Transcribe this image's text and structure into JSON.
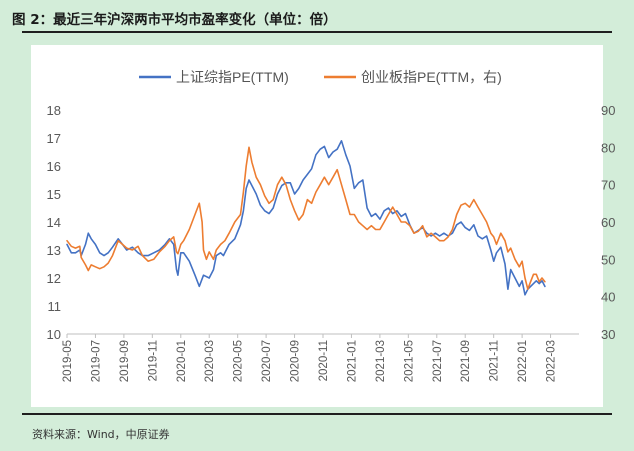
{
  "figure": {
    "title": "图 2：最近三年沪深两市平均市盈率变化（单位：倍）",
    "source": "资料来源：Wind，中原证券"
  },
  "chart_data": {
    "type": "line",
    "legend_position": "top",
    "grid": false,
    "x_ticks": [
      "2019-05",
      "2019-07",
      "2019-09",
      "2019-11",
      "2020-01",
      "2020-03",
      "2020-05",
      "2020-07",
      "2020-09",
      "2020-11",
      "2021-01",
      "2021-03",
      "2021-05",
      "2021-07",
      "2021-09",
      "2021-11",
      "2022-01",
      "2022-03"
    ],
    "x_range": [
      "2019-05",
      "2022-05"
    ],
    "y_left": {
      "min": 10,
      "max": 18,
      "ticks": [
        "10",
        "11",
        "12",
        "13",
        "14",
        "15",
        "16",
        "17",
        "18"
      ]
    },
    "y_right": {
      "min": 30,
      "max": 90,
      "ticks": [
        "30",
        "40",
        "50",
        "60",
        "70",
        "80",
        "90"
      ]
    },
    "series": [
      {
        "name": "上证综指PE(TTM)",
        "axis": "left",
        "color": "#4472c4",
        "points": [
          [
            0,
            13.2
          ],
          [
            0.3,
            12.9
          ],
          [
            0.6,
            12.9
          ],
          [
            0.9,
            13.0
          ],
          [
            1.0,
            12.8
          ],
          [
            1.3,
            13.2
          ],
          [
            1.5,
            13.6
          ],
          [
            1.7,
            13.4
          ],
          [
            2.0,
            13.2
          ],
          [
            2.3,
            12.9
          ],
          [
            2.6,
            12.8
          ],
          [
            2.9,
            12.9
          ],
          [
            3.2,
            13.1
          ],
          [
            3.6,
            13.4
          ],
          [
            3.9,
            13.2
          ],
          [
            4.2,
            13.0
          ],
          [
            4.6,
            13.1
          ],
          [
            5.0,
            12.9
          ],
          [
            5.3,
            12.8
          ],
          [
            5.7,
            12.8
          ],
          [
            6.1,
            12.9
          ],
          [
            6.5,
            13.0
          ],
          [
            6.9,
            13.2
          ],
          [
            7.2,
            13.4
          ],
          [
            7.5,
            13.2
          ],
          [
            7.7,
            12.3
          ],
          [
            7.8,
            12.1
          ],
          [
            8.0,
            12.9
          ],
          [
            8.2,
            12.9
          ],
          [
            8.6,
            12.6
          ],
          [
            9.0,
            12.1
          ],
          [
            9.3,
            11.7
          ],
          [
            9.6,
            12.1
          ],
          [
            10.0,
            12.0
          ],
          [
            10.3,
            12.3
          ],
          [
            10.5,
            12.8
          ],
          [
            10.8,
            12.9
          ],
          [
            11.0,
            12.8
          ],
          [
            11.4,
            13.2
          ],
          [
            11.8,
            13.4
          ],
          [
            12.2,
            13.9
          ],
          [
            12.4,
            14.4
          ],
          [
            12.6,
            15.2
          ],
          [
            12.8,
            15.5
          ],
          [
            13.0,
            15.3
          ],
          [
            13.3,
            15.0
          ],
          [
            13.6,
            14.6
          ],
          [
            13.9,
            14.4
          ],
          [
            14.2,
            14.3
          ],
          [
            14.5,
            14.5
          ],
          [
            14.8,
            15.0
          ],
          [
            15.1,
            15.3
          ],
          [
            15.4,
            15.4
          ],
          [
            15.7,
            15.4
          ],
          [
            16.0,
            15.0
          ],
          [
            16.3,
            15.2
          ],
          [
            16.6,
            15.5
          ],
          [
            16.9,
            15.7
          ],
          [
            17.2,
            15.9
          ],
          [
            17.5,
            16.4
          ],
          [
            17.8,
            16.6
          ],
          [
            18.1,
            16.7
          ],
          [
            18.4,
            16.3
          ],
          [
            18.7,
            16.5
          ],
          [
            19.0,
            16.6
          ],
          [
            19.3,
            16.9
          ],
          [
            19.6,
            16.4
          ],
          [
            19.9,
            16.0
          ],
          [
            20.2,
            15.2
          ],
          [
            20.5,
            15.4
          ],
          [
            20.8,
            15.5
          ],
          [
            21.1,
            14.5
          ],
          [
            21.4,
            14.2
          ],
          [
            21.7,
            14.3
          ],
          [
            22.0,
            14.1
          ],
          [
            22.3,
            14.4
          ],
          [
            22.6,
            14.5
          ],
          [
            22.9,
            14.3
          ],
          [
            23.2,
            14.4
          ],
          [
            23.5,
            14.2
          ],
          [
            23.8,
            14.3
          ],
          [
            24.1,
            13.9
          ],
          [
            24.4,
            13.6
          ],
          [
            24.7,
            13.7
          ],
          [
            25.0,
            13.8
          ],
          [
            25.3,
            13.6
          ],
          [
            25.6,
            13.5
          ],
          [
            25.9,
            13.6
          ],
          [
            26.2,
            13.5
          ],
          [
            26.5,
            13.6
          ],
          [
            26.8,
            13.5
          ],
          [
            27.1,
            13.6
          ],
          [
            27.4,
            13.9
          ],
          [
            27.7,
            14.0
          ],
          [
            28.0,
            13.8
          ],
          [
            28.3,
            13.7
          ],
          [
            28.6,
            13.9
          ],
          [
            28.9,
            13.5
          ],
          [
            29.2,
            13.4
          ],
          [
            29.5,
            13.5
          ],
          [
            29.8,
            13.0
          ],
          [
            30.0,
            12.6
          ],
          [
            30.2,
            12.9
          ],
          [
            30.5,
            13.1
          ],
          [
            30.8,
            12.5
          ],
          [
            31.0,
            11.6
          ],
          [
            31.2,
            12.3
          ],
          [
            31.5,
            12.0
          ],
          [
            31.8,
            11.7
          ],
          [
            32.0,
            11.9
          ],
          [
            32.2,
            11.4
          ],
          [
            32.4,
            11.6
          ],
          [
            32.6,
            11.7
          ],
          [
            32.8,
            11.8
          ],
          [
            33.0,
            11.9
          ],
          [
            33.2,
            11.8
          ],
          [
            33.4,
            11.9
          ],
          [
            33.6,
            11.7
          ]
        ]
      },
      {
        "name": "创业板指PE(TTM，右)",
        "axis": "right",
        "color": "#ed7d31",
        "points": [
          [
            0,
            55.0
          ],
          [
            0.3,
            53.5
          ],
          [
            0.6,
            53.0
          ],
          [
            0.9,
            53.5
          ],
          [
            1.0,
            50.5
          ],
          [
            1.3,
            48.5
          ],
          [
            1.5,
            47.0
          ],
          [
            1.7,
            48.5
          ],
          [
            2.0,
            48.0
          ],
          [
            2.3,
            47.5
          ],
          [
            2.6,
            48.0
          ],
          [
            2.9,
            49.0
          ],
          [
            3.2,
            51.0
          ],
          [
            3.6,
            55.0
          ],
          [
            3.9,
            54.0
          ],
          [
            4.2,
            53.0
          ],
          [
            4.6,
            52.5
          ],
          [
            5.0,
            53.5
          ],
          [
            5.3,
            51.0
          ],
          [
            5.7,
            49.5
          ],
          [
            6.1,
            50.0
          ],
          [
            6.5,
            52.0
          ],
          [
            6.9,
            53.5
          ],
          [
            7.2,
            55.0
          ],
          [
            7.5,
            56.0
          ],
          [
            7.7,
            52.0
          ],
          [
            7.8,
            51.5
          ],
          [
            8.0,
            54.0
          ],
          [
            8.2,
            55.0
          ],
          [
            8.6,
            58.0
          ],
          [
            9.0,
            62.0
          ],
          [
            9.3,
            65.0
          ],
          [
            9.5,
            60.0
          ],
          [
            9.6,
            52.5
          ],
          [
            9.8,
            50.0
          ],
          [
            10.0,
            52.0
          ],
          [
            10.3,
            50.0
          ],
          [
            10.5,
            52.5
          ],
          [
            10.8,
            54.0
          ],
          [
            11.1,
            55.0
          ],
          [
            11.4,
            57.0
          ],
          [
            11.8,
            60.0
          ],
          [
            12.2,
            62.0
          ],
          [
            12.4,
            68.0
          ],
          [
            12.6,
            75.0
          ],
          [
            12.8,
            80.0
          ],
          [
            13.0,
            76.0
          ],
          [
            13.3,
            72.0
          ],
          [
            13.6,
            70.0
          ],
          [
            13.9,
            67.0
          ],
          [
            14.2,
            65.0
          ],
          [
            14.5,
            66.0
          ],
          [
            14.8,
            70.0
          ],
          [
            15.1,
            72.0
          ],
          [
            15.4,
            70.0
          ],
          [
            15.7,
            66.0
          ],
          [
            16.0,
            63.0
          ],
          [
            16.3,
            60.5
          ],
          [
            16.6,
            62.0
          ],
          [
            16.9,
            66.0
          ],
          [
            17.2,
            65.0
          ],
          [
            17.5,
            68.0
          ],
          [
            17.8,
            70.0
          ],
          [
            18.1,
            72.0
          ],
          [
            18.4,
            70.0
          ],
          [
            18.7,
            72.0
          ],
          [
            19.0,
            74.0
          ],
          [
            19.3,
            70.0
          ],
          [
            19.6,
            66.0
          ],
          [
            19.9,
            62.0
          ],
          [
            20.2,
            62.0
          ],
          [
            20.5,
            60.0
          ],
          [
            20.8,
            59.0
          ],
          [
            21.1,
            58.0
          ],
          [
            21.4,
            59.0
          ],
          [
            21.7,
            58.0
          ],
          [
            22.0,
            58.0
          ],
          [
            22.3,
            60.0
          ],
          [
            22.6,
            62.0
          ],
          [
            22.9,
            64.0
          ],
          [
            23.2,
            62.0
          ],
          [
            23.5,
            60.0
          ],
          [
            23.8,
            60.0
          ],
          [
            24.1,
            59.0
          ],
          [
            24.4,
            57.0
          ],
          [
            24.7,
            57.5
          ],
          [
            25.0,
            59.0
          ],
          [
            25.3,
            56.0
          ],
          [
            25.6,
            57.0
          ],
          [
            25.9,
            56.0
          ],
          [
            26.2,
            55.0
          ],
          [
            26.5,
            55.0
          ],
          [
            26.8,
            56.0
          ],
          [
            27.1,
            58.0
          ],
          [
            27.4,
            62.0
          ],
          [
            27.7,
            64.5
          ],
          [
            28.0,
            65.0
          ],
          [
            28.3,
            64.0
          ],
          [
            28.6,
            66.0
          ],
          [
            28.9,
            64.0
          ],
          [
            29.2,
            62.0
          ],
          [
            29.5,
            60.0
          ],
          [
            29.8,
            57.0
          ],
          [
            30.0,
            56.0
          ],
          [
            30.2,
            54.0
          ],
          [
            30.5,
            57.0
          ],
          [
            30.8,
            55.0
          ],
          [
            31.0,
            52.0
          ],
          [
            31.2,
            53.0
          ],
          [
            31.5,
            50.0
          ],
          [
            31.8,
            48.0
          ],
          [
            32.0,
            49.5
          ],
          [
            32.2,
            45.0
          ],
          [
            32.4,
            42.0
          ],
          [
            32.6,
            44.0
          ],
          [
            32.8,
            46.0
          ],
          [
            33.0,
            46.0
          ],
          [
            33.2,
            44.0
          ],
          [
            33.4,
            45.0
          ],
          [
            33.6,
            44.0
          ]
        ]
      }
    ]
  }
}
